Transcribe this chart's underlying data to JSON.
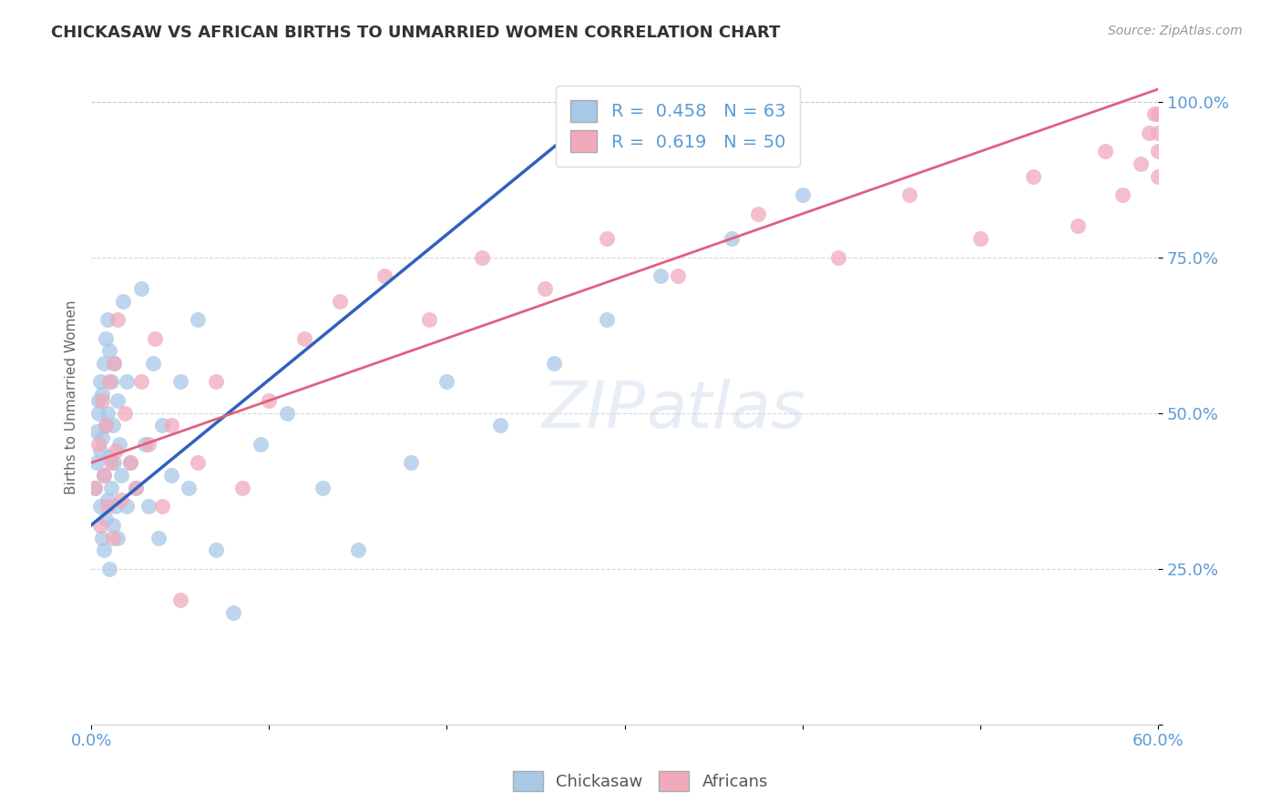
{
  "title": "CHICKASAW VS AFRICAN BIRTHS TO UNMARRIED WOMEN CORRELATION CHART",
  "source": "Source: ZipAtlas.com",
  "ylabel": "Births to Unmarried Women",
  "xlim": [
    0.0,
    0.6
  ],
  "ylim": [
    0.0,
    1.05
  ],
  "xticks": [
    0.0,
    0.1,
    0.2,
    0.3,
    0.4,
    0.5,
    0.6
  ],
  "xticklabels": [
    "0.0%",
    "",
    "",
    "",
    "",
    "",
    "60.0%"
  ],
  "yticks": [
    0.0,
    0.25,
    0.5,
    0.75,
    1.0
  ],
  "yticklabels": [
    "",
    "25.0%",
    "50.0%",
    "75.0%",
    "100.0%"
  ],
  "chickasaw_R": 0.458,
  "chickasaw_N": 63,
  "african_R": 0.619,
  "african_N": 50,
  "blue_color": "#A8C8E8",
  "pink_color": "#F0AABB",
  "blue_line_color": "#3060C0",
  "pink_line_color": "#E06080",
  "legend_label_blue": "Chickasaw",
  "legend_label_pink": "Africans",
  "blue_line_x0": 0.0,
  "blue_line_y0": 0.32,
  "blue_line_x1": 0.3,
  "blue_line_y1": 1.02,
  "pink_line_x0": 0.0,
  "pink_line_y0": 0.42,
  "pink_line_x1": 0.6,
  "pink_line_y1": 1.02,
  "chickasaw_x": [
    0.002,
    0.003,
    0.003,
    0.004,
    0.004,
    0.005,
    0.005,
    0.005,
    0.006,
    0.006,
    0.006,
    0.007,
    0.007,
    0.007,
    0.008,
    0.008,
    0.008,
    0.009,
    0.009,
    0.009,
    0.01,
    0.01,
    0.01,
    0.011,
    0.011,
    0.012,
    0.012,
    0.013,
    0.013,
    0.014,
    0.015,
    0.015,
    0.016,
    0.017,
    0.018,
    0.02,
    0.02,
    0.022,
    0.025,
    0.028,
    0.03,
    0.032,
    0.035,
    0.038,
    0.04,
    0.045,
    0.05,
    0.055,
    0.06,
    0.07,
    0.08,
    0.095,
    0.11,
    0.13,
    0.15,
    0.18,
    0.2,
    0.23,
    0.26,
    0.29,
    0.32,
    0.36,
    0.4
  ],
  "chickasaw_y": [
    0.38,
    0.42,
    0.47,
    0.5,
    0.52,
    0.35,
    0.44,
    0.55,
    0.3,
    0.46,
    0.53,
    0.28,
    0.4,
    0.58,
    0.33,
    0.48,
    0.62,
    0.36,
    0.5,
    0.65,
    0.25,
    0.43,
    0.6,
    0.38,
    0.55,
    0.32,
    0.48,
    0.42,
    0.58,
    0.35,
    0.3,
    0.52,
    0.45,
    0.4,
    0.68,
    0.35,
    0.55,
    0.42,
    0.38,
    0.7,
    0.45,
    0.35,
    0.58,
    0.3,
    0.48,
    0.4,
    0.55,
    0.38,
    0.65,
    0.28,
    0.18,
    0.45,
    0.5,
    0.38,
    0.28,
    0.42,
    0.55,
    0.48,
    0.58,
    0.65,
    0.72,
    0.78,
    0.85
  ],
  "african_x": [
    0.002,
    0.004,
    0.005,
    0.006,
    0.007,
    0.008,
    0.009,
    0.01,
    0.011,
    0.012,
    0.013,
    0.014,
    0.015,
    0.017,
    0.019,
    0.022,
    0.025,
    0.028,
    0.032,
    0.036,
    0.04,
    0.045,
    0.05,
    0.06,
    0.07,
    0.085,
    0.1,
    0.12,
    0.14,
    0.165,
    0.19,
    0.22,
    0.255,
    0.29,
    0.33,
    0.375,
    0.42,
    0.46,
    0.5,
    0.53,
    0.555,
    0.57,
    0.58,
    0.59,
    0.595,
    0.598,
    0.6,
    0.6,
    0.6,
    0.6
  ],
  "african_y": [
    0.38,
    0.45,
    0.32,
    0.52,
    0.4,
    0.48,
    0.35,
    0.55,
    0.42,
    0.3,
    0.58,
    0.44,
    0.65,
    0.36,
    0.5,
    0.42,
    0.38,
    0.55,
    0.45,
    0.62,
    0.35,
    0.48,
    0.2,
    0.42,
    0.55,
    0.38,
    0.52,
    0.62,
    0.68,
    0.72,
    0.65,
    0.75,
    0.7,
    0.78,
    0.72,
    0.82,
    0.75,
    0.85,
    0.78,
    0.88,
    0.8,
    0.92,
    0.85,
    0.9,
    0.95,
    0.98,
    0.88,
    0.92,
    0.95,
    0.98
  ]
}
